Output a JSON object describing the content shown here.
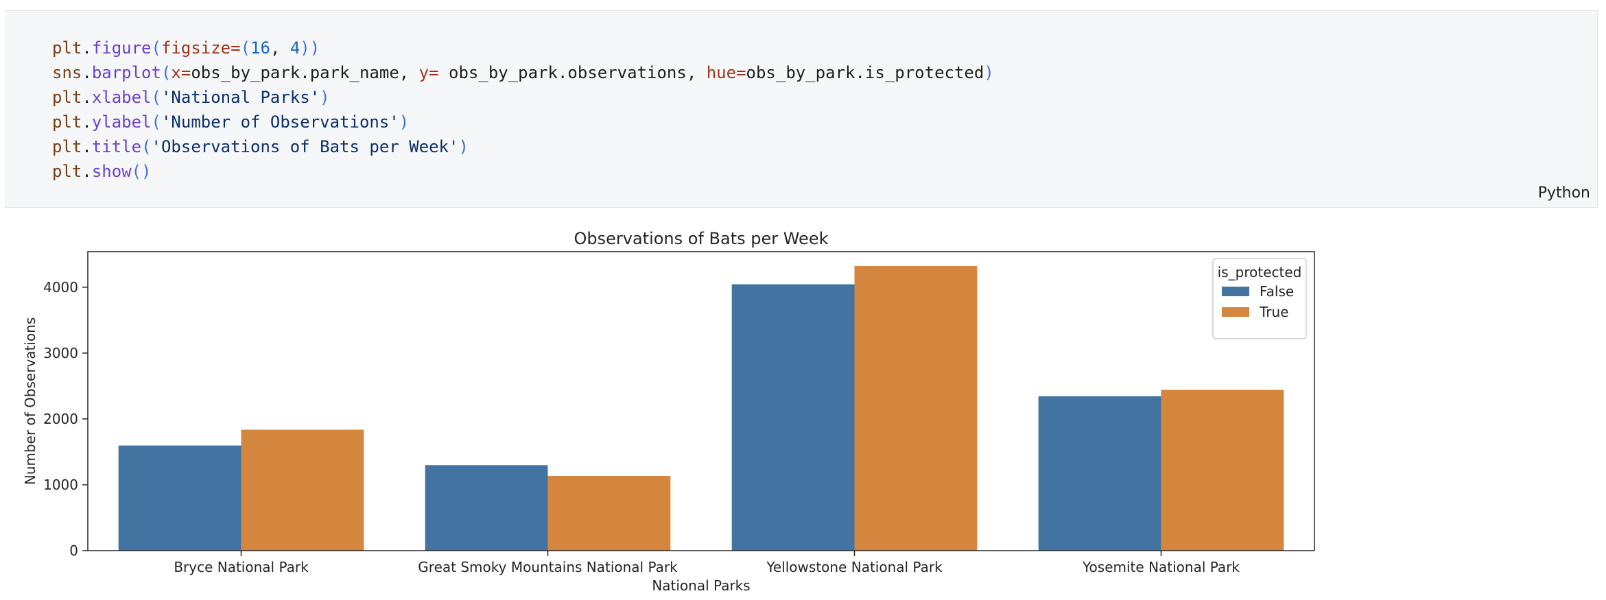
{
  "code_cell": {
    "lines": [
      [
        {
          "t": "plt",
          "c": "var"
        },
        {
          "t": ".",
          "c": "plain"
        },
        {
          "t": "figure",
          "c": "func"
        },
        {
          "t": "(",
          "c": "paren"
        },
        {
          "t": "figsize",
          "c": "param"
        },
        {
          "t": "=",
          "c": "param"
        },
        {
          "t": "(",
          "c": "paren"
        },
        {
          "t": "16",
          "c": "num"
        },
        {
          "t": ", ",
          "c": "plain"
        },
        {
          "t": "4",
          "c": "num"
        },
        {
          "t": "))",
          "c": "paren"
        }
      ],
      [
        {
          "t": "sns",
          "c": "var"
        },
        {
          "t": ".",
          "c": "plain"
        },
        {
          "t": "barplot",
          "c": "func"
        },
        {
          "t": "(",
          "c": "paren"
        },
        {
          "t": "x",
          "c": "param"
        },
        {
          "t": "=",
          "c": "param"
        },
        {
          "t": "obs_by_park.park_name, ",
          "c": "plain"
        },
        {
          "t": "y",
          "c": "param"
        },
        {
          "t": "= ",
          "c": "param"
        },
        {
          "t": "obs_by_park.observations, ",
          "c": "plain"
        },
        {
          "t": "hue",
          "c": "param"
        },
        {
          "t": "=",
          "c": "param"
        },
        {
          "t": "obs_by_park.is_protected",
          "c": "plain"
        },
        {
          "t": ")",
          "c": "paren"
        }
      ],
      [
        {
          "t": "plt",
          "c": "var"
        },
        {
          "t": ".",
          "c": "plain"
        },
        {
          "t": "xlabel",
          "c": "func"
        },
        {
          "t": "(",
          "c": "paren"
        },
        {
          "t": "'National Parks'",
          "c": "str"
        },
        {
          "t": ")",
          "c": "paren"
        }
      ],
      [
        {
          "t": "plt",
          "c": "var"
        },
        {
          "t": ".",
          "c": "plain"
        },
        {
          "t": "ylabel",
          "c": "func"
        },
        {
          "t": "(",
          "c": "paren"
        },
        {
          "t": "'Number of Observations'",
          "c": "str"
        },
        {
          "t": ")",
          "c": "paren"
        }
      ],
      [
        {
          "t": "plt",
          "c": "var"
        },
        {
          "t": ".",
          "c": "plain"
        },
        {
          "t": "title",
          "c": "func"
        },
        {
          "t": "(",
          "c": "paren"
        },
        {
          "t": "'Observations of Bats per Week'",
          "c": "str"
        },
        {
          "t": ")",
          "c": "paren"
        }
      ],
      [
        {
          "t": "plt",
          "c": "var"
        },
        {
          "t": ".",
          "c": "plain"
        },
        {
          "t": "show",
          "c": "func"
        },
        {
          "t": "()",
          "c": "paren"
        }
      ]
    ],
    "language": "Python"
  },
  "colors": {
    "false_series": "#4374a1",
    "true_series": "#d4853e"
  },
  "chart_data": {
    "type": "bar",
    "title": "Observations of Bats per Week",
    "xlabel": "National Parks",
    "ylabel": "Number of Observations",
    "categories": [
      "Bryce National Park",
      "Great Smoky Mountains National Park",
      "Yellowstone National Park",
      "Yosemite National Park"
    ],
    "series": [
      {
        "name": "False",
        "values": [
          1596,
          1299,
          4044,
          2345
        ]
      },
      {
        "name": "True",
        "values": [
          1837,
          1135,
          4321,
          2441
        ]
      }
    ],
    "yticks": [
      0,
      1000,
      2000,
      3000,
      4000
    ],
    "ylim": [
      0,
      4540
    ],
    "grid": false,
    "legend": {
      "title": "is_protected",
      "placement": "top-right"
    }
  }
}
